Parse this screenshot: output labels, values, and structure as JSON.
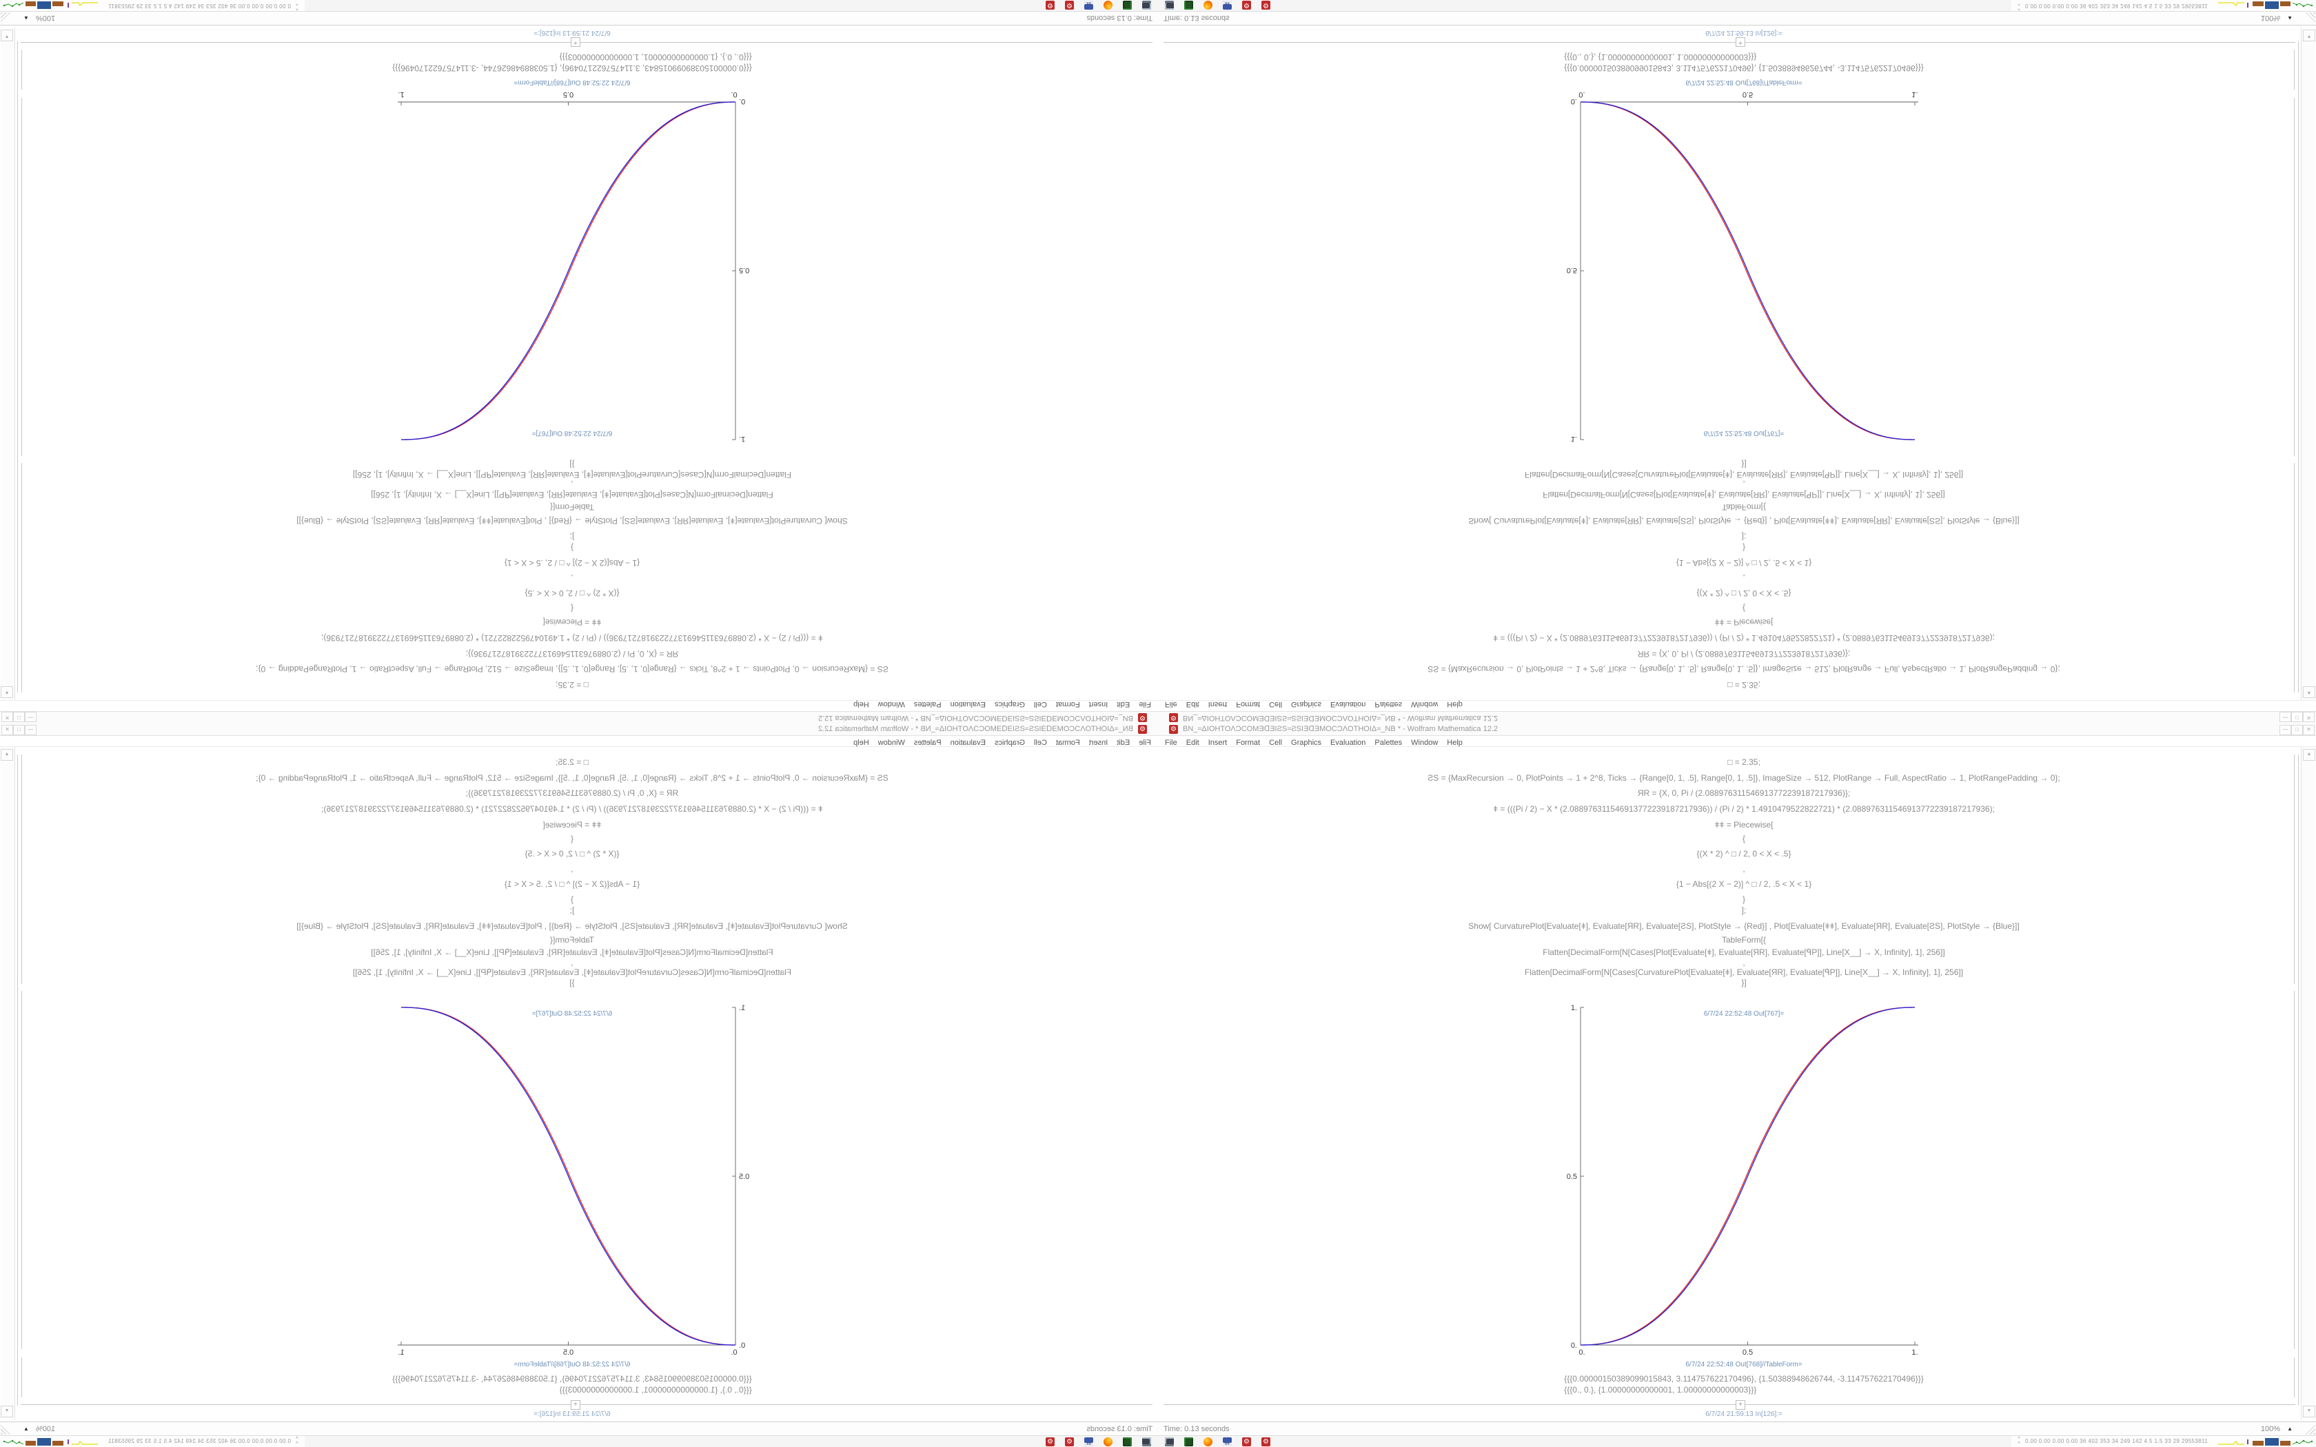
{
  "window": {
    "title": "BN_≈ΔIOHTOΛƆCOMƎᗡƎIƧS≈ƧSIƎᗡƎMOCƆΛOTHOIΔ≈_NB * - Wolfram Mathematica 12.2",
    "menu": [
      "File",
      "Edit",
      "Insert",
      "Format",
      "Cell",
      "Graphics",
      "Evaluation",
      "Palettes",
      "Window",
      "Help"
    ],
    "controls": {
      "minimize": "—",
      "maximize": "□",
      "close": "✕"
    }
  },
  "cells": {
    "input_lines": [
      "□ = 2.35;",
      "ƧS = {MaxRecursion → 0, PlotPoints → 1 + 2^8, Ticks → {Range[0, 1, .5], Range[0, 1, .5]}, ImageSize → 512, PlotRange → Full, AspectRatio → 1, PlotRangePadding → 0};",
      "ЯR = {X, 0, Pi / (2.088976311546913772239187217936)};",
      "ǂ = (((Pi / 2) − X * (2.088976311546913772239187217936)) / (Pi / 2) * 1.4910479522822721) * (2.088976311546913772239187217936);",
      "ǂǂ = Piecewise[",
      "{",
      "{(X * 2) ^ □ / 2, 0 < X < .5}",
      ",",
      "{1 − Abs[(2 X − 2)] ^ □ / 2, .5 < X < 1}",
      "}",
      "];",
      "Show[  CurvaturePlot[Evaluate[ǂ], Evaluate[ЯR], Evaluate[ƧS], PlotStyle → {Red}]  ,  Plot[Evaluate[ǂǂ], Evaluate[ЯR], Evaluate[ƧS],  PlotStyle → {Blue}]]",
      "TableForm[{",
      "Flatten[DecimalForm[N[Cases[Plot[Evaluate[ǂ], Evaluate[ЯR], Evaluate[ᑫP]], Line[X__] → X, Infinity], 1], 256]]",
      ",",
      "Flatten[DecimalForm[N[Cases[CurvaturePlot[Evaluate[ǂ], Evaluate[ЯR], Evaluate[ᑫP]], Line[X__] → X, Infinity], 1], 256]]",
      "}]"
    ],
    "out1_label": "6/7/24 22:52:48 Out[767]=",
    "out2_label": "6/7/24 22:52:48 Out[768]//TableForm=",
    "in_label": "6/7/24 21:59:13 In[126]:=",
    "table_rows": [
      "{{{0.00000150389099015843, 3.114757622170496}, {1.50388948626744, -3.114757622170496}}}",
      "{{{0., 0.}, {1.00000000000001, 1.00000000000003}}}"
    ],
    "insert_plus": "+"
  },
  "chart_data": {
    "type": "line",
    "title": "",
    "xlabel": "",
    "ylabel": "",
    "xlim": [
      0,
      1
    ],
    "ylim": [
      0,
      1
    ],
    "xticks": [
      0,
      0.5,
      1
    ],
    "yticks": [
      0,
      0.5,
      1
    ],
    "xtick_labels": [
      "0.",
      "0.5",
      "1."
    ],
    "ytick_labels": [
      "0.",
      "0.5",
      "1."
    ],
    "grid": false,
    "legend_position": "none",
    "omega": 2.35,
    "formula": "f(X) = (2X)^2.35/2 for 0<X<.5 ; 1-|2X-2|^2.35/2 for .5<X<1",
    "x": [
      0,
      0.1,
      0.2,
      0.3,
      0.4,
      0.5,
      0.6,
      0.7,
      0.8,
      0.9,
      1.0
    ],
    "series": [
      {
        "name": "CurvaturePlot (Red)",
        "color": "#e02121",
        "values": [
          0,
          0.0114,
          0.058,
          0.1506,
          0.296,
          0.5,
          0.704,
          0.8494,
          0.942,
          0.9886,
          1.0
        ]
      },
      {
        "name": "Plot (Blue)",
        "color": "#2121e0",
        "values": [
          0,
          0.0114,
          0.058,
          0.1506,
          0.296,
          0.5,
          0.704,
          0.8494,
          0.942,
          0.9886,
          1.0
        ]
      }
    ]
  },
  "status_bar": {
    "time": "Time: 0.13 seconds",
    "zoom": "100%"
  },
  "taskbar": {
    "icons": [
      {
        "name": "system-monitor-icon"
      },
      {
        "name": "green-app-icon"
      },
      {
        "name": "firefox-icon"
      },
      {
        "name": "floppy-64-icon",
        "label": "64"
      },
      {
        "name": "mathematica-icon-1",
        "glyph": "⚙"
      },
      {
        "name": "mathematica-icon-2",
        "glyph": "⚙"
      }
    ],
    "tray": {
      "expander": "^",
      "stats": "0.00 0.00 0.00 0.00   36   402   353   34   249   142   4.5   1.5   33   29   29553811"
    }
  }
}
